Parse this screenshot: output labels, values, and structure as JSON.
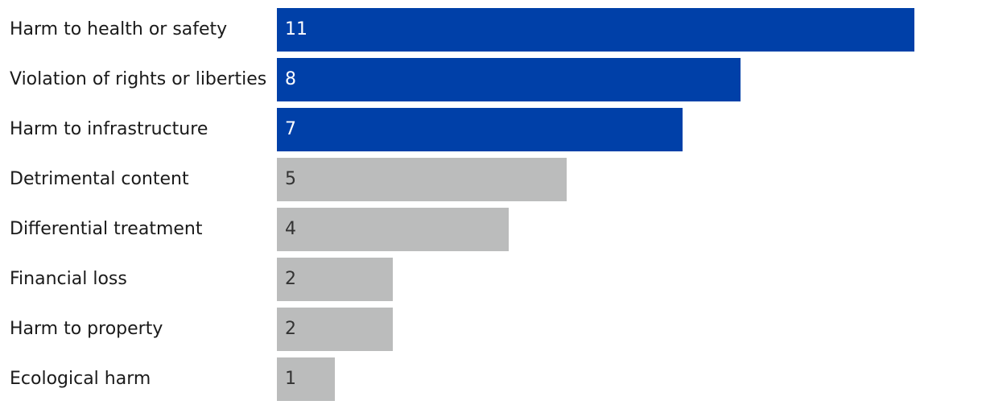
{
  "chart_data": {
    "type": "bar",
    "orientation": "horizontal",
    "categories": [
      "Harm to health or safety",
      "Violation of rights or liberties",
      "Harm to infrastructure",
      "Detrimental content",
      "Differential treatment",
      "Financial loss",
      "Harm to property",
      "Ecological harm"
    ],
    "values": [
      11,
      8,
      7,
      5,
      4,
      2,
      2,
      1
    ],
    "highlighted": [
      true,
      true,
      true,
      false,
      false,
      false,
      false,
      false
    ],
    "colors": {
      "highlight": "#0040a8",
      "normal": "#bbbcbc",
      "highlight_text": "#ffffff",
      "normal_text": "#333333"
    },
    "xlim": [
      0,
      11
    ],
    "title": "",
    "xlabel": "",
    "ylabel": "",
    "grid": false,
    "legend": "none"
  }
}
